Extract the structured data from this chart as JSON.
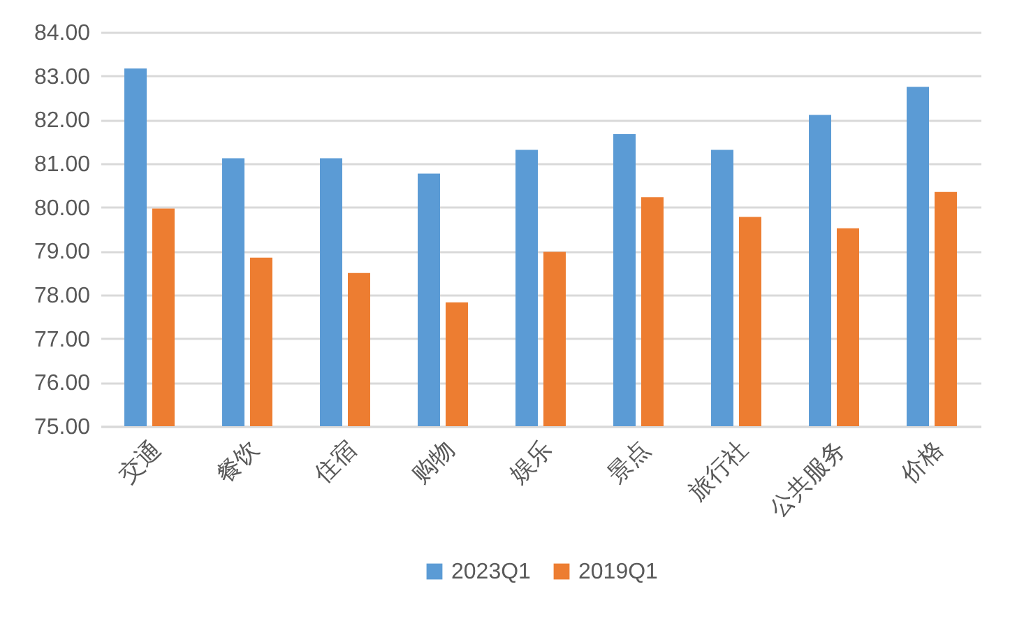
{
  "chart_data": {
    "type": "bar",
    "categories": [
      "交通",
      "餐饮",
      "住宿",
      "购物",
      "娱乐",
      "景点",
      "旅行社",
      "公共服务",
      "价格"
    ],
    "series": [
      {
        "name": "2023Q1",
        "color": "#5b9bd5",
        "values": [
          83.17,
          81.12,
          81.12,
          80.77,
          81.31,
          81.67,
          81.31,
          82.11,
          82.75
        ]
      },
      {
        "name": "2019Q1",
        "color": "#ed7d31",
        "values": [
          79.97,
          78.85,
          78.5,
          77.83,
          78.98,
          80.23,
          79.78,
          79.52,
          80.35
        ]
      }
    ],
    "ylim": [
      75,
      84
    ],
    "yticks": [
      {
        "value": 75,
        "label": "75.00"
      },
      {
        "value": 76,
        "label": "76.00"
      },
      {
        "value": 77,
        "label": "77.00"
      },
      {
        "value": 78,
        "label": "78.00"
      },
      {
        "value": 79,
        "label": "79.00"
      },
      {
        "value": 80,
        "label": "80.00"
      },
      {
        "value": 81,
        "label": "81.00"
      },
      {
        "value": 82,
        "label": "82.00"
      },
      {
        "value": 83,
        "label": "83.00"
      },
      {
        "value": 84,
        "label": "84.00"
      }
    ],
    "grid": "y",
    "legend": "bottom"
  }
}
